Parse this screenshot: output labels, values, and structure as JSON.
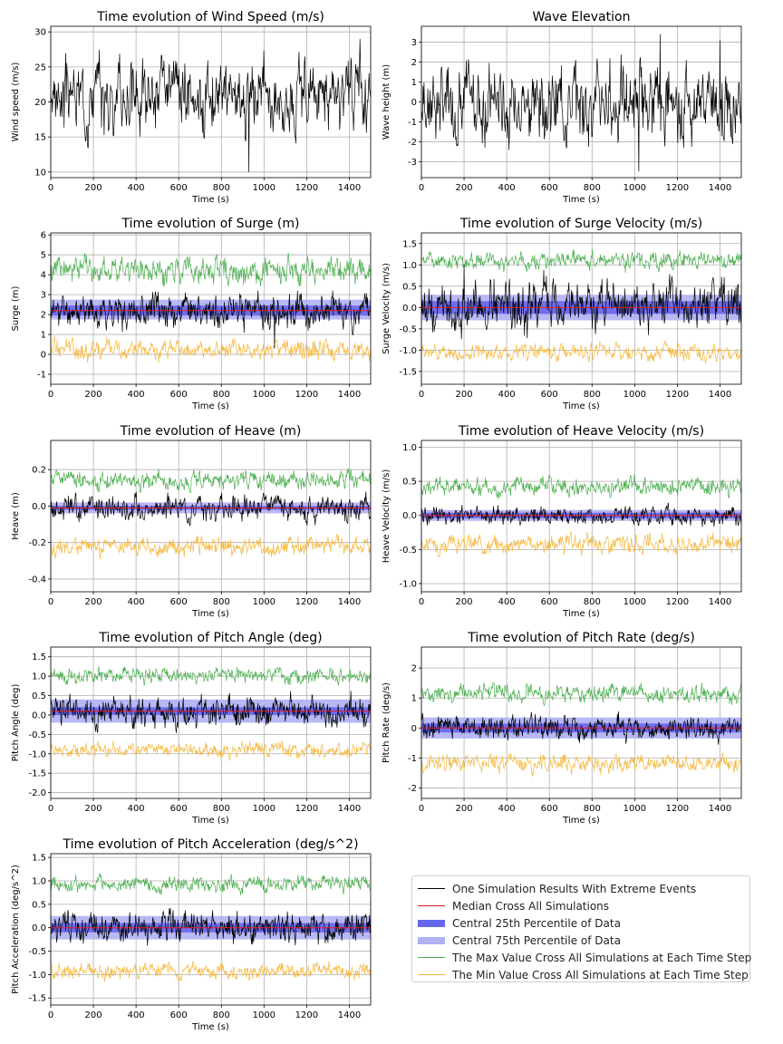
{
  "chart_data": [
    {
      "type": "line",
      "id": "wind",
      "title": "Time evolution of Wind Speed (m/s)",
      "xlabel": "Time (s)",
      "ylabel": "Wind speed (m/s)",
      "xlim": [
        0,
        1500
      ],
      "ylim": [
        9.2,
        30.8
      ],
      "xticks": [
        0,
        200,
        400,
        600,
        800,
        1000,
        1200,
        1400
      ],
      "yticks": [
        10,
        15,
        20,
        25,
        30
      ],
      "grid": true,
      "series": [
        {
          "name": "One Simulation Results With Extreme Events",
          "base": 21,
          "amp": 3,
          "seed": 3,
          "color": "#000000",
          "spikes": [
            [
              930,
              -11
            ],
            [
              1450,
              8
            ]
          ]
        }
      ]
    },
    {
      "type": "line",
      "id": "wave",
      "title": "Wave Elevation",
      "xlabel": "Time (s)",
      "ylabel": "Wave height (m)",
      "xlim": [
        0,
        1500
      ],
      "ylim": [
        -3.8,
        3.8
      ],
      "xticks": [
        0,
        200,
        400,
        600,
        800,
        1000,
        1200,
        1400
      ],
      "yticks": [
        -3,
        -2,
        -1,
        0,
        1,
        2,
        3
      ],
      "grid": true,
      "series": [
        {
          "name": "One Simulation Results With Extreme Events",
          "base": 0,
          "amp": 1.1,
          "seed": 7,
          "color": "#000000",
          "spikes": [
            [
              1020,
              -3.5
            ],
            [
              1120,
              3.4
            ],
            [
              1400,
              3.1
            ]
          ]
        }
      ]
    },
    {
      "type": "line",
      "id": "surge",
      "title": "Time evolution of Surge (m)",
      "xlabel": "Time (s)",
      "ylabel": "Surge (m)",
      "xlim": [
        0,
        1500
      ],
      "ylim": [
        -1.5,
        6.1
      ],
      "xticks": [
        0,
        200,
        400,
        600,
        800,
        1000,
        1200,
        1400
      ],
      "yticks": [
        -1,
        0,
        1,
        2,
        3,
        4,
        5,
        6
      ],
      "grid": true,
      "median": 2.2,
      "band25": [
        1.95,
        2.45
      ],
      "band75": [
        1.75,
        2.75
      ],
      "max": {
        "base": 4.2,
        "amp": 0.4
      },
      "min": {
        "base": 0.2,
        "amp": 0.3
      },
      "series": [
        {
          "name": "One Simulation Results With Extreme Events",
          "base": 2.2,
          "amp": 0.5,
          "seed": 11,
          "color": "#000000",
          "spikes": [
            [
              1050,
              -1.9
            ]
          ]
        }
      ]
    },
    {
      "type": "line",
      "id": "surge_vel",
      "title": "Time evolution of Surge Velocity (m/s)",
      "xlabel": "Time (s)",
      "ylabel": "Surge Velocity (m/s)",
      "xlim": [
        0,
        1500
      ],
      "ylim": [
        -1.8,
        1.75
      ],
      "xticks": [
        0,
        200,
        400,
        600,
        800,
        1000,
        1200,
        1400
      ],
      "yticks": [
        -1.5,
        -1.0,
        -0.5,
        0.0,
        0.5,
        1.0,
        1.5
      ],
      "grid": true,
      "median": 0.0,
      "band25": [
        -0.15,
        0.15
      ],
      "band75": [
        -0.3,
        0.3
      ],
      "max": {
        "base": 1.08,
        "amp": 0.12
      },
      "min": {
        "base": -1.05,
        "amp": 0.12
      },
      "series": [
        {
          "name": "One Simulation Results With Extreme Events",
          "base": 0,
          "amp": 0.35,
          "seed": 13,
          "color": "#000000",
          "spikes": [
            [
              200,
              1.0
            ]
          ]
        }
      ]
    },
    {
      "type": "line",
      "id": "heave",
      "title": "Time evolution of Heave (m)",
      "xlabel": "Time (s)",
      "ylabel": "Heave (m)",
      "xlim": [
        0,
        1500
      ],
      "ylim": [
        -0.47,
        0.36
      ],
      "xticks": [
        0,
        200,
        400,
        600,
        800,
        1000,
        1200,
        1400
      ],
      "yticks": [
        -0.4,
        -0.2,
        0.0,
        0.2
      ],
      "grid": true,
      "median": -0.01,
      "band25": [
        -0.02,
        0.0
      ],
      "band75": [
        -0.04,
        0.02
      ],
      "max": {
        "base": 0.14,
        "amp": 0.03
      },
      "min": {
        "base": -0.22,
        "amp": 0.03
      },
      "series": [
        {
          "name": "One Simulation Results With Extreme Events",
          "base": -0.01,
          "amp": 0.04,
          "seed": 17,
          "color": "#000000"
        }
      ]
    },
    {
      "type": "line",
      "id": "heave_vel",
      "title": "Time evolution of Heave Velocity (m/s)",
      "xlabel": "Time (s)",
      "ylabel": "Heave Velocity (m/s)",
      "xlim": [
        0,
        1500
      ],
      "ylim": [
        -1.12,
        1.1
      ],
      "xticks": [
        0,
        200,
        400,
        600,
        800,
        1000,
        1200,
        1400
      ],
      "yticks": [
        -1.0,
        -0.5,
        0.0,
        0.5,
        1.0
      ],
      "grid": true,
      "median": 0.0,
      "band25": [
        -0.04,
        0.04
      ],
      "band75": [
        -0.08,
        0.08
      ],
      "max": {
        "base": 0.42,
        "amp": 0.08
      },
      "min": {
        "base": -0.42,
        "amp": 0.08
      },
      "series": [
        {
          "name": "One Simulation Results With Extreme Events",
          "base": 0,
          "amp": 0.08,
          "seed": 19,
          "color": "#000000"
        }
      ]
    },
    {
      "type": "line",
      "id": "pitch",
      "title": "Time evolution of Pitch Angle (deg)",
      "xlabel": "Time (s)",
      "ylabel": "Pitch Angle (deg)",
      "xlim": [
        0,
        1500
      ],
      "ylim": [
        -2.15,
        1.75
      ],
      "xticks": [
        0,
        200,
        400,
        600,
        800,
        1000,
        1200,
        1400
      ],
      "yticks": [
        -2.0,
        -1.5,
        -1.0,
        -0.5,
        0.0,
        0.5,
        1.0,
        1.5
      ],
      "grid": true,
      "median": 0.1,
      "band25": [
        0.0,
        0.2
      ],
      "band75": [
        -0.2,
        0.4
      ],
      "max": {
        "base": 1.0,
        "amp": 0.12
      },
      "min": {
        "base": -0.9,
        "amp": 0.12
      },
      "series": [
        {
          "name": "One Simulation Results With Extreme Events",
          "base": 0.1,
          "amp": 0.25,
          "seed": 23,
          "color": "#000000"
        }
      ]
    },
    {
      "type": "line",
      "id": "pitch_rate",
      "title": "Time evolution of Pitch Rate (deg/s)",
      "xlabel": "Time (s)",
      "ylabel": "Pitch Rate (deg/s)",
      "xlim": [
        0,
        1500
      ],
      "ylim": [
        -2.35,
        2.7
      ],
      "xticks": [
        0,
        200,
        400,
        600,
        800,
        1000,
        1200,
        1400
      ],
      "yticks": [
        -2,
        -1,
        0,
        1,
        2
      ],
      "grid": true,
      "median": 0.0,
      "band25": [
        -0.15,
        0.15
      ],
      "band75": [
        -0.35,
        0.35
      ],
      "max": {
        "base": 1.15,
        "amp": 0.18
      },
      "min": {
        "base": -1.2,
        "amp": 0.18
      },
      "series": [
        {
          "name": "One Simulation Results With Extreme Events",
          "base": 0,
          "amp": 0.25,
          "seed": 29,
          "color": "#000000"
        }
      ]
    },
    {
      "type": "line",
      "id": "pitch_acc",
      "title": "Time evolution of Pitch Acceleration (deg/s^2)",
      "xlabel": "Time (s)",
      "ylabel": "Pitch Acceleration (deg/s^2)",
      "xlim": [
        0,
        1500
      ],
      "ylim": [
        -1.65,
        1.58
      ],
      "xticks": [
        0,
        200,
        400,
        600,
        800,
        1000,
        1200,
        1400
      ],
      "yticks": [
        -1.5,
        -1.0,
        -0.5,
        0.0,
        0.5,
        1.0,
        1.5
      ],
      "grid": true,
      "median": 0.0,
      "band25": [
        -0.1,
        0.1
      ],
      "band75": [
        -0.25,
        0.25
      ],
      "max": {
        "base": 0.93,
        "amp": 0.1
      },
      "min": {
        "base": -0.93,
        "amp": 0.1
      },
      "series": [
        {
          "name": "One Simulation Results With Extreme Events",
          "base": 0,
          "amp": 0.2,
          "seed": 31,
          "color": "#000000"
        }
      ]
    }
  ],
  "legend": [
    {
      "label": "One Simulation Results With Extreme Events",
      "color": "#000000",
      "kind": "line"
    },
    {
      "label": "Median Cross All Simulations",
      "color": "#e02020",
      "kind": "line"
    },
    {
      "label": "Central 25th Percentile of Data",
      "color": "#6666ee",
      "kind": "band"
    },
    {
      "label": "Central 75th Percentile of Data",
      "color": "#b0b0f4",
      "kind": "band"
    },
    {
      "label": "The Max Value Cross All Simulations at Each Time Step",
      "color": "#4caf50",
      "kind": "line"
    },
    {
      "label": "The Min Value Cross All Simulations at Each Time Step",
      "color": "#f5b942",
      "kind": "line"
    }
  ],
  "colors": {
    "sim": "#000000",
    "median": "#e02020",
    "band25": "#6666ee",
    "band75": "#b0b0f4",
    "max": "#4caf50",
    "min": "#f5b942"
  }
}
